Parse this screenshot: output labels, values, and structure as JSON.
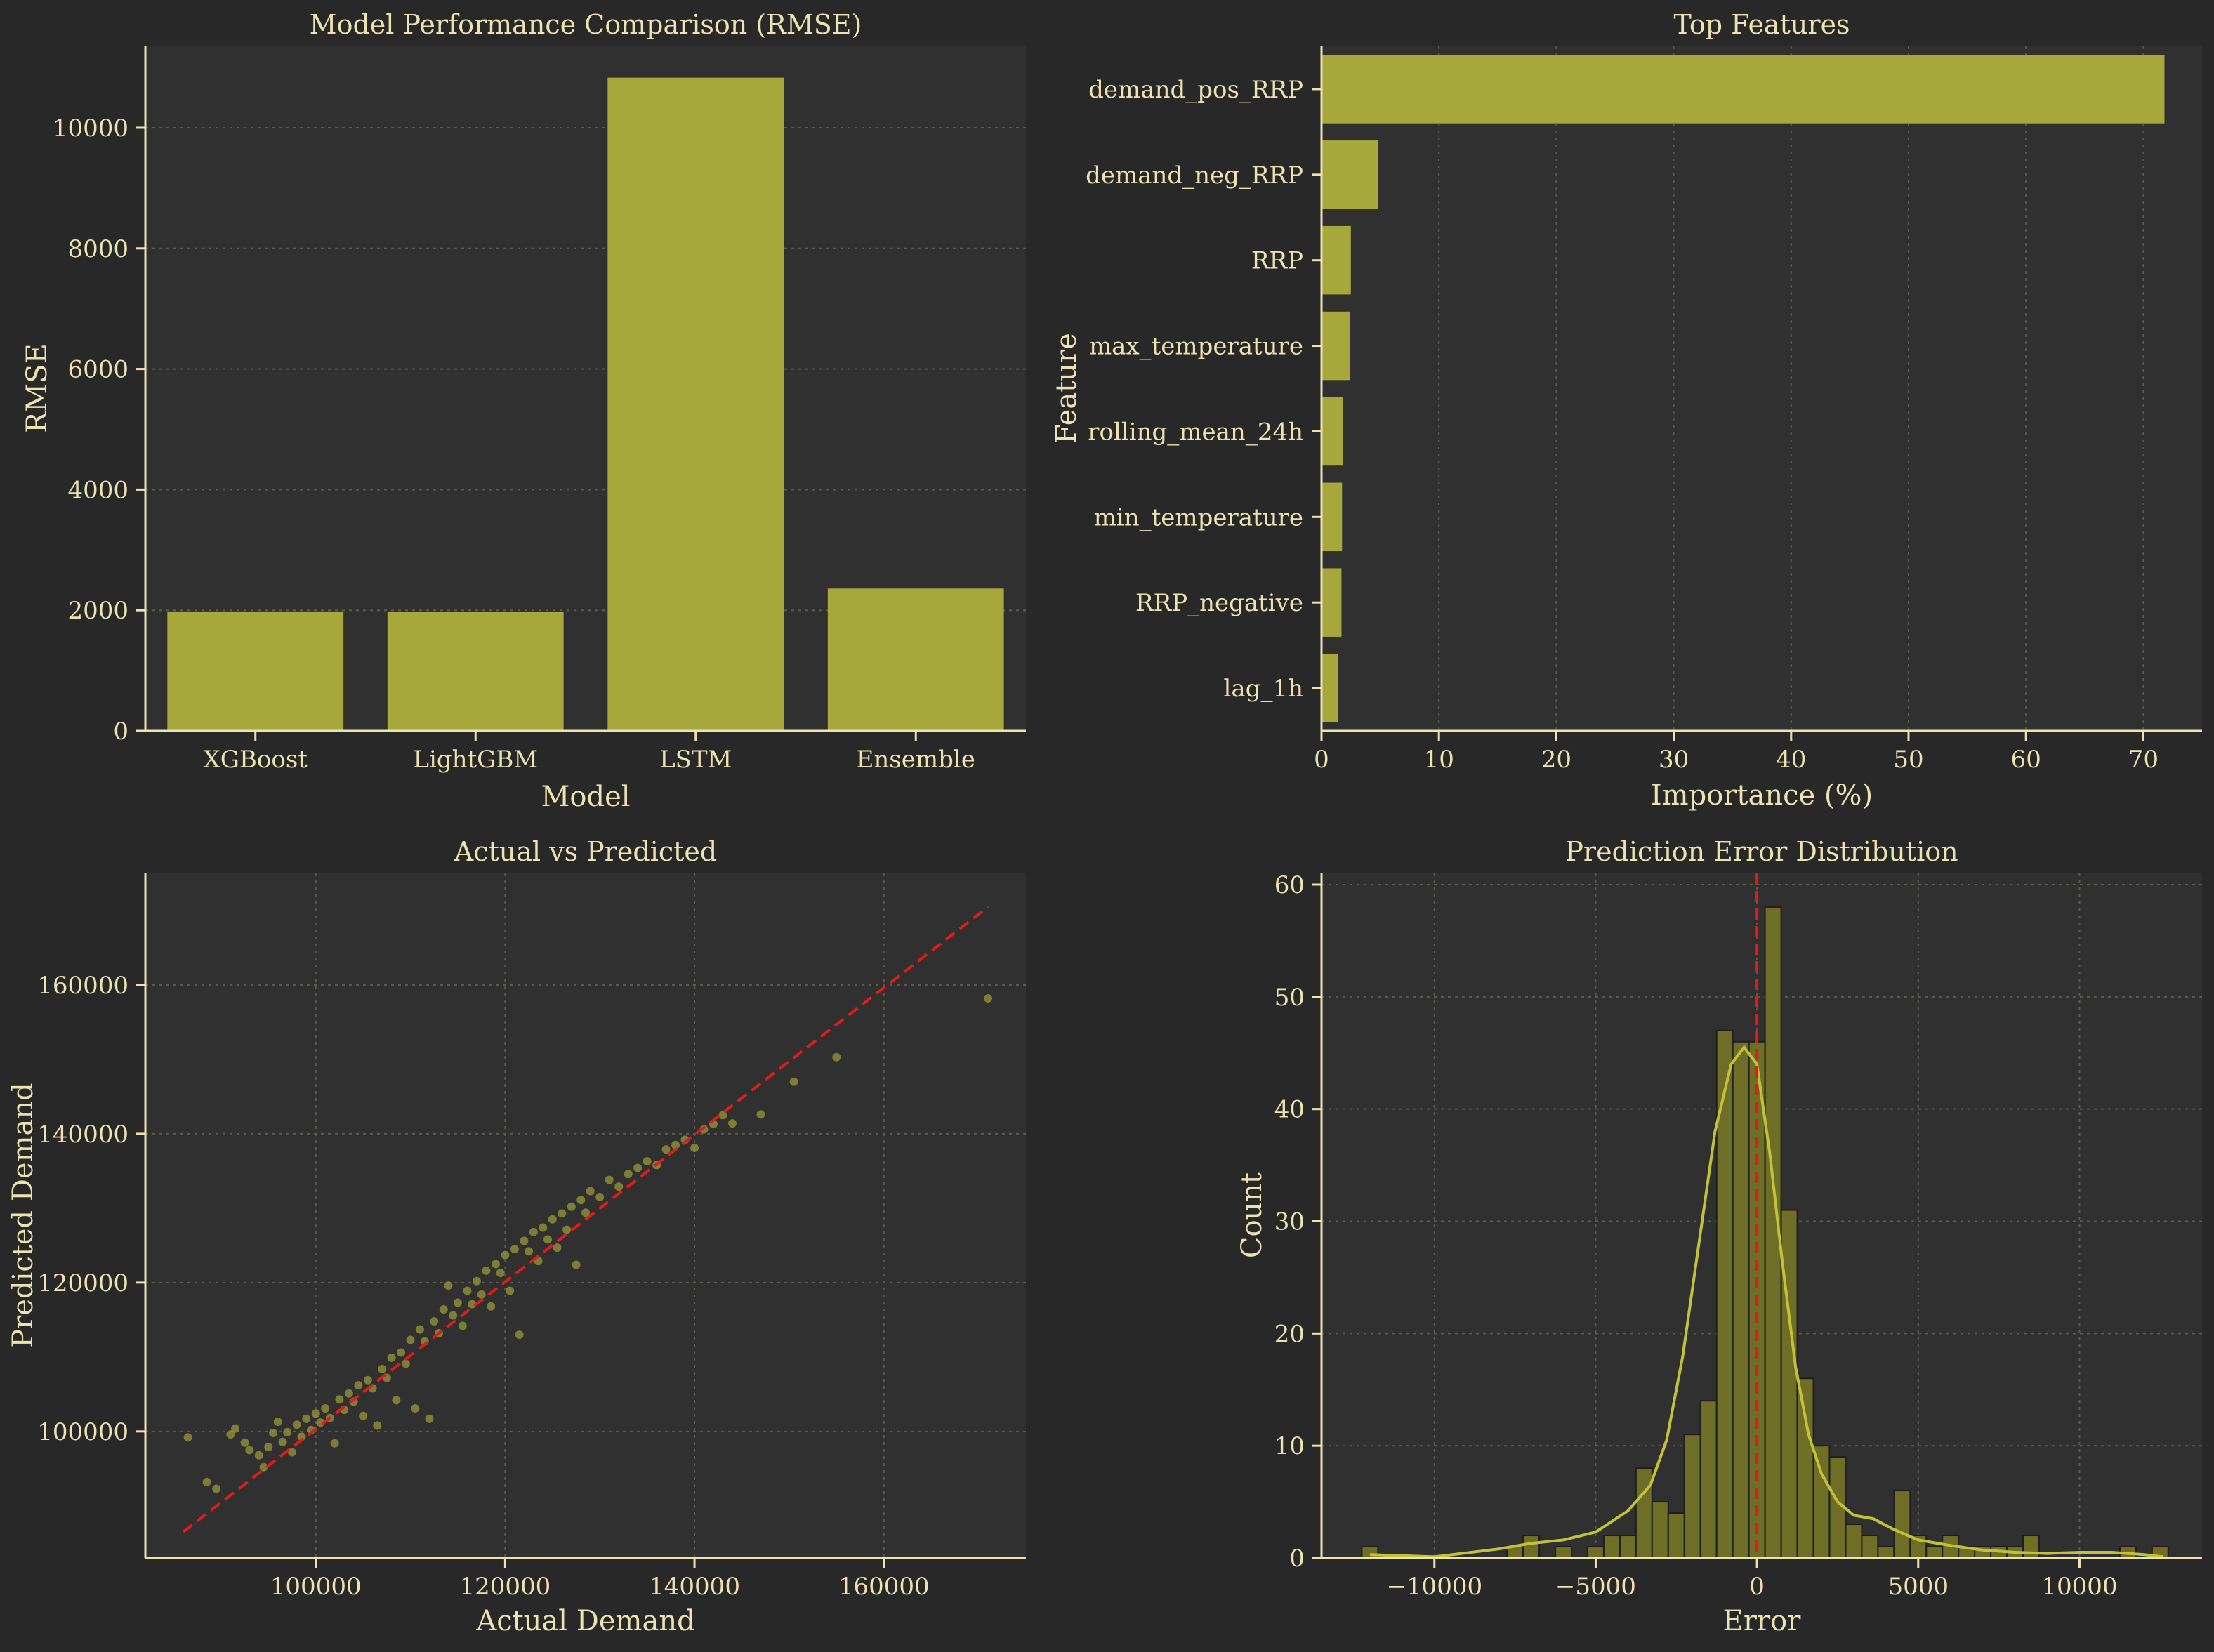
{
  "colors": {
    "background": "#282828",
    "plot_background": "#303030",
    "text": "#ece3b3",
    "bar": "#a6a83c",
    "hist_bar": "#6e6e26",
    "scatter": "#a6a83c",
    "kde": "#c2c23a",
    "reference_line": "#e01b1b",
    "grid": "#5d5a50"
  },
  "chart_data": [
    {
      "id": "rmse",
      "type": "bar",
      "title": "Model Performance Comparison (RMSE)",
      "xlabel": "Model",
      "ylabel": "RMSE",
      "categories": [
        "XGBoost",
        "LightGBM",
        "LSTM",
        "Ensemble"
      ],
      "values": [
        1980,
        1975,
        10830,
        2360
      ],
      "ylim": [
        0,
        11350
      ],
      "yticks": [
        0,
        2000,
        4000,
        6000,
        8000,
        10000
      ],
      "grid": "y"
    },
    {
      "id": "features",
      "type": "bar",
      "orientation": "horizontal",
      "title": "Top Features",
      "xlabel": "Importance (%)",
      "ylabel": "Feature",
      "categories": [
        "demand_pos_RRP",
        "demand_neg_RRP",
        "RRP",
        "max_temperature",
        "rolling_mean_24h",
        "min_temperature",
        "RRP_negative",
        "lag_1h"
      ],
      "values": [
        71.8,
        4.8,
        2.5,
        2.4,
        1.8,
        1.75,
        1.7,
        1.4
      ],
      "xlim": [
        0,
        75
      ],
      "xticks": [
        0,
        10,
        20,
        30,
        40,
        50,
        60,
        70
      ],
      "grid": "x"
    },
    {
      "id": "actual_vs_predicted",
      "type": "scatter",
      "title": "Actual vs Predicted",
      "xlabel": "Actual Demand",
      "ylabel": "Predicted Demand",
      "xlim": [
        82000,
        175000
      ],
      "ylim": [
        83000,
        175000
      ],
      "xticks": [
        100000,
        120000,
        140000,
        160000
      ],
      "yticks": [
        100000,
        120000,
        140000,
        160000
      ],
      "reference_line": {
        "x": [
          86000,
          171000
        ],
        "y": [
          86500,
          170500
        ]
      },
      "points": [
        [
          86500,
          99200
        ],
        [
          88500,
          93200
        ],
        [
          89500,
          92300
        ],
        [
          91000,
          99600
        ],
        [
          91500,
          100400
        ],
        [
          92500,
          98500
        ],
        [
          93000,
          97500
        ],
        [
          94000,
          96800
        ],
        [
          94500,
          95200
        ],
        [
          95000,
          97900
        ],
        [
          95500,
          99800
        ],
        [
          96000,
          101300
        ],
        [
          96500,
          98600
        ],
        [
          97000,
          99900
        ],
        [
          97500,
          97200
        ],
        [
          98000,
          100900
        ],
        [
          98500,
          99300
        ],
        [
          99000,
          101700
        ],
        [
          99500,
          100200
        ],
        [
          100000,
          102400
        ],
        [
          100500,
          101200
        ],
        [
          101000,
          103100
        ],
        [
          101500,
          101800
        ],
        [
          102000,
          98400
        ],
        [
          102500,
          104300
        ],
        [
          103000,
          102900
        ],
        [
          103500,
          105100
        ],
        [
          104000,
          104000
        ],
        [
          104500,
          106200
        ],
        [
          105000,
          102100
        ],
        [
          105500,
          106900
        ],
        [
          106000,
          105800
        ],
        [
          106500,
          100800
        ],
        [
          107000,
          108400
        ],
        [
          107500,
          107200
        ],
        [
          108000,
          109900
        ],
        [
          108500,
          104200
        ],
        [
          109000,
          110600
        ],
        [
          109500,
          109100
        ],
        [
          110000,
          112300
        ],
        [
          110500,
          103100
        ],
        [
          111000,
          113700
        ],
        [
          111500,
          112100
        ],
        [
          112000,
          101700
        ],
        [
          112500,
          114800
        ],
        [
          113000,
          113200
        ],
        [
          113500,
          116400
        ],
        [
          114000,
          119600
        ],
        [
          114500,
          115600
        ],
        [
          115000,
          117300
        ],
        [
          115500,
          114200
        ],
        [
          116000,
          118900
        ],
        [
          116500,
          117100
        ],
        [
          117000,
          120200
        ],
        [
          117500,
          118400
        ],
        [
          118000,
          121600
        ],
        [
          118500,
          116800
        ],
        [
          119000,
          122500
        ],
        [
          119500,
          121300
        ],
        [
          120000,
          123700
        ],
        [
          120500,
          118900
        ],
        [
          121000,
          124500
        ],
        [
          121500,
          113000
        ],
        [
          122000,
          125600
        ],
        [
          122500,
          124200
        ],
        [
          123000,
          126800
        ],
        [
          123500,
          122900
        ],
        [
          124000,
          127400
        ],
        [
          124500,
          125800
        ],
        [
          125000,
          128500
        ],
        [
          125500,
          124700
        ],
        [
          126000,
          129300
        ],
        [
          126500,
          127100
        ],
        [
          127000,
          130200
        ],
        [
          127500,
          122400
        ],
        [
          128000,
          131100
        ],
        [
          128500,
          129400
        ],
        [
          129000,
          132300
        ],
        [
          130000,
          131500
        ],
        [
          131000,
          133800
        ],
        [
          132000,
          132900
        ],
        [
          133000,
          134600
        ],
        [
          134000,
          135400
        ],
        [
          135000,
          136300
        ],
        [
          136000,
          135800
        ],
        [
          137000,
          137900
        ],
        [
          138000,
          138500
        ],
        [
          139000,
          139200
        ],
        [
          140000,
          138100
        ],
        [
          141000,
          140600
        ],
        [
          142000,
          141300
        ],
        [
          143000,
          142500
        ],
        [
          144000,
          141400
        ],
        [
          147000,
          142600
        ],
        [
          150500,
          147000
        ],
        [
          155000,
          150300
        ],
        [
          171000,
          158200
        ]
      ]
    },
    {
      "id": "error_distribution",
      "type": "histogram",
      "title": "Prediction Error Distribution",
      "xlabel": "Error",
      "ylabel": "Count",
      "xlim": [
        -13500,
        13800
      ],
      "ylim": [
        0,
        61
      ],
      "xticks": [
        -10000,
        -5000,
        0,
        5000,
        10000
      ],
      "yticks": [
        0,
        10,
        20,
        30,
        40,
        50,
        60
      ],
      "bin_start": -12250,
      "bin_width": 500,
      "counts": [
        1,
        0,
        0,
        0,
        0,
        0,
        0,
        0,
        0,
        1,
        2,
        0,
        1,
        0,
        1,
        2,
        2,
        8,
        5,
        4,
        11,
        14,
        47,
        46,
        46,
        58,
        31,
        16,
        10,
        9,
        3,
        2,
        1,
        6,
        2,
        1,
        2,
        1,
        1,
        1,
        1,
        2,
        0,
        0,
        0,
        0,
        0,
        1,
        0,
        1
      ],
      "vertical_line": 0,
      "kde_points": [
        [
          -12000,
          0.3
        ],
        [
          -10000,
          0.1
        ],
        [
          -8000,
          0.8
        ],
        [
          -7000,
          1.3
        ],
        [
          -6000,
          1.6
        ],
        [
          -5000,
          2.3
        ],
        [
          -4000,
          4.2
        ],
        [
          -3300,
          6.5
        ],
        [
          -2800,
          10.5
        ],
        [
          -2300,
          18
        ],
        [
          -1800,
          28
        ],
        [
          -1300,
          38
        ],
        [
          -800,
          44
        ],
        [
          -400,
          45.5
        ],
        [
          0,
          44
        ],
        [
          400,
          36
        ],
        [
          800,
          26
        ],
        [
          1200,
          17
        ],
        [
          1600,
          11
        ],
        [
          2000,
          7.5
        ],
        [
          2500,
          5
        ],
        [
          3000,
          3.8
        ],
        [
          3600,
          3.5
        ],
        [
          4200,
          2.6
        ],
        [
          5000,
          1.6
        ],
        [
          6000,
          1.1
        ],
        [
          7000,
          0.7
        ],
        [
          8000,
          0.5
        ],
        [
          9000,
          0.4
        ],
        [
          10000,
          0.5
        ],
        [
          11000,
          0.5
        ],
        [
          12000,
          0.3
        ],
        [
          12600,
          0.1
        ]
      ]
    }
  ]
}
